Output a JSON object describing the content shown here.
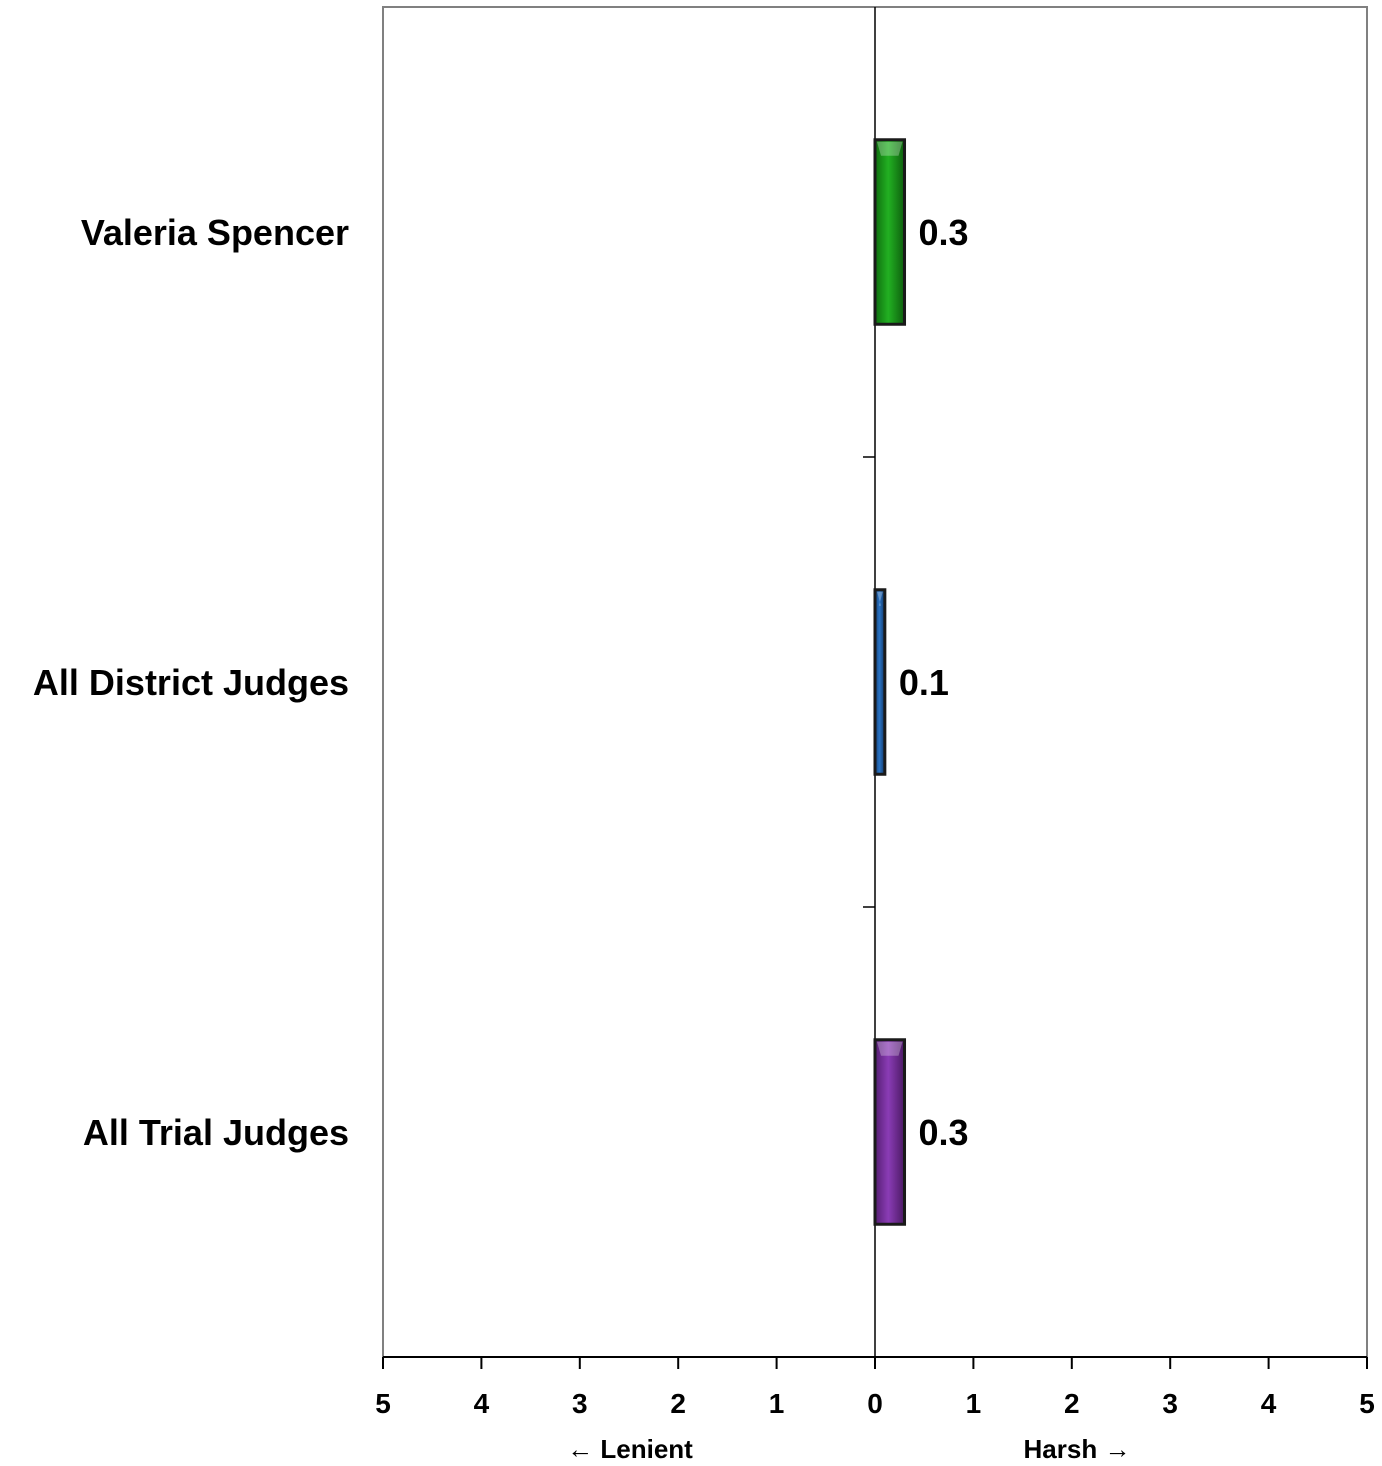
{
  "chart_data": {
    "type": "bar",
    "orientation": "horizontal",
    "categories": [
      "Valeria Spencer",
      "All District Judges",
      "All Trial Judges"
    ],
    "values": [
      0.3,
      0.1,
      0.3
    ],
    "value_labels": [
      "0.3",
      "0.1",
      "0.3"
    ],
    "colors": [
      "#1f9a1f",
      "#1f5fa8",
      "#7a2fa0"
    ],
    "xlim": [
      -5,
      5
    ],
    "x_ticks": [
      -5,
      -4,
      -3,
      -2,
      -1,
      0,
      1,
      2,
      3,
      4,
      5
    ],
    "x_tick_labels": [
      "5",
      "4",
      "3",
      "2",
      "1",
      "0",
      "1",
      "2",
      "3",
      "4",
      "5"
    ],
    "left_direction_label": "← Lenient",
    "right_direction_label": "Harsh →",
    "title": "",
    "xlabel": "",
    "ylabel": "",
    "grid": false,
    "legend": "none"
  }
}
